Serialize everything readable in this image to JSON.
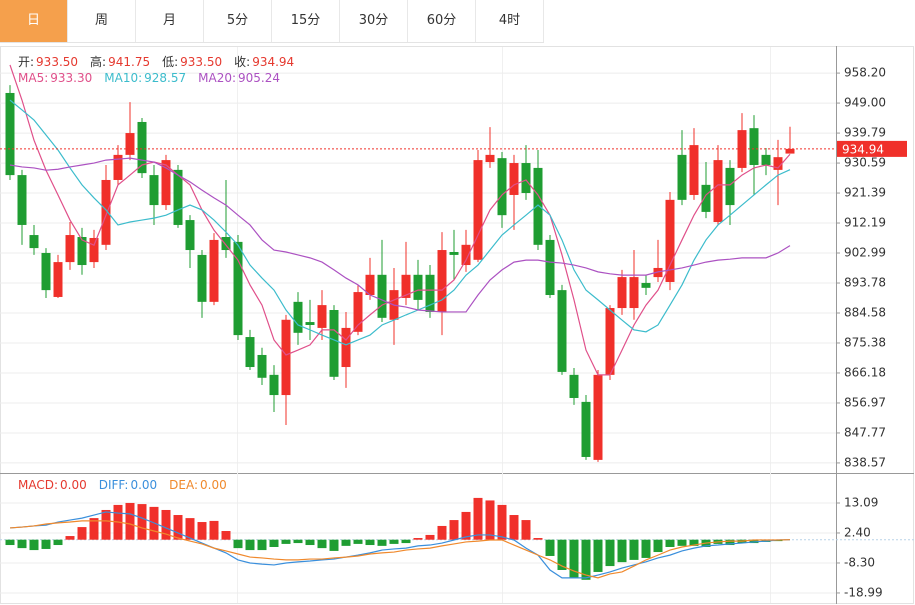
{
  "tabs": [
    "日",
    "周",
    "月",
    "5分",
    "15分",
    "30分",
    "60分",
    "4时"
  ],
  "active_tab": 0,
  "header": {
    "items": [
      {
        "label": "开:",
        "value": "933.50"
      },
      {
        "label": "高:",
        "value": "941.75"
      },
      {
        "label": "低:",
        "value": "933.50"
      },
      {
        "label": "收:",
        "value": "934.94"
      }
    ]
  },
  "chart_data": [
    {
      "type": "candlestick",
      "up_color": "#f0302a",
      "down_color": "#1f9d32",
      "ylim": [
        836.4,
        965.9
      ],
      "yticks": [
        {
          "value": 958.2,
          "label": "958.20"
        },
        {
          "value": 949.0,
          "label": "949.00"
        },
        {
          "value": 939.79,
          "label": "939.79"
        },
        {
          "value": 930.59,
          "label": "930.59"
        },
        {
          "value": 921.39,
          "label": "921.39"
        },
        {
          "value": 912.19,
          "label": "912.19"
        },
        {
          "value": 902.99,
          "label": "902.99"
        },
        {
          "value": 893.78,
          "label": "893.78"
        },
        {
          "value": 884.58,
          "label": "884.58"
        },
        {
          "value": 875.38,
          "label": "875.38"
        },
        {
          "value": 866.18,
          "label": "866.18"
        },
        {
          "value": 856.97,
          "label": "856.97"
        },
        {
          "value": 847.77,
          "label": "847.77"
        },
        {
          "value": 838.57,
          "label": "838.57"
        }
      ],
      "grid": true,
      "last_price": {
        "value": 934.94,
        "label": "934.94"
      },
      "open": [
        952.1,
        926.9,
        908.5,
        903.0,
        889.5,
        900.2,
        907.9,
        900.2,
        905.5,
        925.4,
        933.1,
        943.2,
        926.9,
        917.7,
        928.5,
        913.1,
        902.4,
        888.0,
        907.9,
        906.4,
        877.2,
        871.7,
        865.6,
        859.4,
        888.0,
        881.8,
        880.0,
        885.5,
        868.0,
        878.8,
        890.1,
        896.3,
        882.5,
        889.2,
        896.3,
        896.3,
        884.9,
        903.3,
        899.3,
        900.9,
        930.9,
        932.1,
        920.8,
        930.6,
        929.1,
        907.0,
        891.6,
        865.6,
        857.3,
        839.5,
        865.6,
        886.1,
        886.1,
        893.8,
        895.6,
        894.1,
        933.1,
        920.8,
        923.9,
        912.5,
        929.1,
        929.1,
        941.3,
        933.1,
        928.5,
        933.5
      ],
      "high": [
        954.5,
        928.5,
        911.6,
        904.5,
        902.4,
        912.5,
        910.7,
        910.1,
        930.0,
        936.1,
        949.3,
        944.4,
        930.0,
        933.1,
        930.0,
        914.6,
        903.9,
        909.1,
        925.4,
        908.5,
        879.4,
        873.9,
        868.6,
        884.0,
        891.0,
        888.6,
        891.6,
        887.0,
        884.9,
        893.2,
        901.5,
        907.0,
        898.4,
        906.4,
        900.9,
        899.3,
        909.4,
        910.1,
        910.1,
        934.6,
        941.6,
        934.0,
        933.1,
        936.1,
        934.6,
        908.5,
        893.2,
        867.7,
        859.4,
        867.1,
        887.0,
        897.8,
        903.9,
        896.3,
        907.0,
        921.7,
        940.7,
        941.3,
        930.9,
        936.1,
        931.5,
        945.9,
        945.3,
        935.2,
        937.7,
        941.75
      ],
      "low": [
        925.4,
        905.5,
        902.4,
        889.2,
        889.2,
        897.8,
        896.3,
        898.4,
        903.9,
        923.9,
        931.5,
        926.0,
        911.6,
        916.2,
        910.7,
        898.4,
        883.1,
        887.0,
        901.5,
        876.3,
        867.1,
        862.5,
        854.2,
        850.2,
        874.8,
        876.3,
        876.3,
        864.0,
        861.6,
        877.8,
        888.6,
        881.8,
        874.8,
        887.0,
        885.5,
        883.1,
        877.8,
        894.7,
        897.2,
        900.2,
        929.1,
        910.7,
        910.1,
        919.3,
        903.9,
        889.2,
        865.6,
        856.4,
        839.5,
        838.9,
        864.0,
        884.0,
        882.5,
        890.1,
        894.1,
        891.6,
        917.7,
        919.3,
        913.7,
        911.6,
        911.6,
        927.8,
        920.8,
        926.9,
        917.7,
        933.5
      ],
      "close": [
        926.9,
        911.6,
        904.5,
        891.6,
        900.2,
        908.5,
        899.3,
        907.6,
        925.4,
        933.1,
        939.8,
        927.5,
        917.7,
        931.5,
        911.6,
        903.9,
        888.0,
        907.0,
        903.9,
        877.8,
        868.0,
        864.7,
        859.4,
        882.5,
        878.5,
        880.9,
        887.0,
        865.0,
        880.0,
        891.0,
        896.3,
        883.1,
        891.6,
        896.3,
        888.6,
        884.9,
        903.9,
        902.4,
        905.5,
        931.5,
        933.1,
        914.6,
        930.6,
        921.4,
        905.5,
        890.1,
        866.5,
        858.5,
        840.4,
        865.6,
        886.1,
        895.6,
        895.6,
        892.3,
        898.4,
        919.3,
        919.3,
        936.1,
        915.6,
        931.5,
        917.7,
        940.7,
        930.0,
        930.0,
        932.4,
        934.94
      ],
      "series": [
        {
          "name": "MA5:",
          "value_label": "933.30",
          "color": "#e0508a",
          "values": [
            960.7,
            949.9,
            937.6,
            928.4,
            920.8,
            913.1,
            907.0,
            905.4,
            914.6,
            923.9,
            926.9,
            930.0,
            930.9,
            930.0,
            926.9,
            923.9,
            916.2,
            910.0,
            905.4,
            900.8,
            893.2,
            887.0,
            876.3,
            871.7,
            873.2,
            874.8,
            879.4,
            879.4,
            876.3,
            880.9,
            884.0,
            887.0,
            888.6,
            890.1,
            891.6,
            891.6,
            891.6,
            894.7,
            900.8,
            908.5,
            916.2,
            920.8,
            923.9,
            925.4,
            920.8,
            914.6,
            902.4,
            888.6,
            873.2,
            865.6,
            865.6,
            873.2,
            880.9,
            887.0,
            891.6,
            899.3,
            907.0,
            914.6,
            920.8,
            923.9,
            923.9,
            926.9,
            929.1,
            930.0,
            929.1,
            933.3
          ]
        },
        {
          "name": "MA10:",
          "value_label": "928.57",
          "color": "#3cbccc",
          "values": [
            949.9,
            946.9,
            943.8,
            939.2,
            934.6,
            929.1,
            923.9,
            919.9,
            916.2,
            911.6,
            912.5,
            913.1,
            913.7,
            914.6,
            916.2,
            917.7,
            916.2,
            913.1,
            909.4,
            905.4,
            899.3,
            895.3,
            891.6,
            885.5,
            880.9,
            879.4,
            877.8,
            876.3,
            874.8,
            876.3,
            877.8,
            880.9,
            882.4,
            884.0,
            885.5,
            887.0,
            888.6,
            891.6,
            896.2,
            899.3,
            903.9,
            908.5,
            911.6,
            914.6,
            917.7,
            914.6,
            907.0,
            897.8,
            891.6,
            888.6,
            885.5,
            882.4,
            879.4,
            878.8,
            880.9,
            887.0,
            893.2,
            900.8,
            907.0,
            911.6,
            914.6,
            917.7,
            920.8,
            923.9,
            926.9,
            928.57
          ]
        },
        {
          "name": "MA20:",
          "value_label": "905.24",
          "color": "#ac52c2",
          "values": [
            930.0,
            929.4,
            929.1,
            928.4,
            928.7,
            929.4,
            930.0,
            930.6,
            931.5,
            931.8,
            932.1,
            931.5,
            930.9,
            929.1,
            926.9,
            924.8,
            922.3,
            919.9,
            917.7,
            914.6,
            911.6,
            907.0,
            903.9,
            903.3,
            902.4,
            901.5,
            900.2,
            897.8,
            895.3,
            893.2,
            890.1,
            888.6,
            887.0,
            886.4,
            885.5,
            885.2,
            884.9,
            884.9,
            884.9,
            890.1,
            894.7,
            897.8,
            900.2,
            900.8,
            900.8,
            900.2,
            899.9,
            899.3,
            898.4,
            897.2,
            896.6,
            896.2,
            896.2,
            896.2,
            897.2,
            897.8,
            898.4,
            899.3,
            900.2,
            900.8,
            901.1,
            901.5,
            901.5,
            901.5,
            903.0,
            905.24
          ]
        }
      ]
    },
    {
      "type": "macd",
      "up_color": "#f0302a",
      "down_color": "#1f9d32",
      "ylim": [
        -21.5,
        22.0
      ],
      "yticks": [
        {
          "value": 13.09,
          "label": "13.09"
        },
        {
          "value": 2.4,
          "label": "2.40"
        },
        {
          "value": -8.3,
          "label": "-8.30"
        },
        {
          "value": -18.99,
          "label": "-18.99"
        }
      ],
      "series": [
        {
          "name": "MACD:",
          "value_label": "0.00",
          "color": "#e5392f",
          "kind": "bar",
          "values": [
            -1.9,
            -3.0,
            -3.7,
            -3.3,
            -1.9,
            1.3,
            4.5,
            7.7,
            10.6,
            12.4,
            13.1,
            12.7,
            11.7,
            10.6,
            8.8,
            7.7,
            6.3,
            6.7,
            3.1,
            -3.0,
            -3.7,
            -3.7,
            -2.6,
            -1.5,
            -1.2,
            -1.9,
            -3.0,
            -4.0,
            -2.2,
            -1.5,
            -1.9,
            -2.2,
            -1.5,
            -1.2,
            0.6,
            1.7,
            4.9,
            7.0,
            9.9,
            14.9,
            14.0,
            12.4,
            8.8,
            7.0,
            0.6,
            -5.8,
            -10.8,
            -13.6,
            -14.3,
            -11.5,
            -9.4,
            -8.0,
            -7.2,
            -6.5,
            -4.4,
            -2.6,
            -2.2,
            -2.2,
            -2.6,
            -1.5,
            -1.9,
            -1.2,
            -1.2,
            -0.8,
            -0.5,
            0
          ]
        },
        {
          "name": "DIFF:",
          "value_label": "0.00",
          "color": "#3a8fdc",
          "kind": "line",
          "values": [
            4.2,
            4.5,
            4.9,
            5.2,
            6.3,
            7.0,
            7.7,
            8.8,
            9.9,
            9.5,
            9.2,
            7.7,
            6.0,
            4.2,
            2.4,
            0.6,
            -1.2,
            -3.0,
            -4.7,
            -7.2,
            -8.3,
            -8.7,
            -9.0,
            -8.3,
            -7.9,
            -7.6,
            -7.2,
            -6.9,
            -6.2,
            -5.5,
            -4.7,
            -3.7,
            -3.3,
            -3.0,
            -2.2,
            -1.9,
            -1.2,
            -0.1,
            1.0,
            1.7,
            1.7,
            1.0,
            -0.1,
            -3.0,
            -5.5,
            -10.8,
            -13.6,
            -13.6,
            -13.6,
            -12.6,
            -11.5,
            -10.1,
            -9.0,
            -7.9,
            -6.5,
            -5.5,
            -4.0,
            -3.0,
            -2.2,
            -1.9,
            -1.5,
            -1.2,
            -0.8,
            -0.5,
            -0.1,
            0
          ]
        },
        {
          "name": "DEA:",
          "value_label": "0.00",
          "color": "#f0892c",
          "kind": "line",
          "values": [
            4.2,
            4.5,
            4.9,
            5.6,
            6.0,
            6.3,
            6.7,
            6.7,
            6.7,
            6.3,
            5.6,
            4.2,
            3.1,
            2.0,
            0.6,
            -0.5,
            -1.5,
            -3.0,
            -4.0,
            -5.1,
            -6.2,
            -6.5,
            -6.9,
            -7.2,
            -7.2,
            -6.9,
            -6.9,
            -6.5,
            -6.2,
            -5.8,
            -5.1,
            -4.7,
            -4.4,
            -3.7,
            -3.3,
            -3.0,
            -2.2,
            -1.5,
            -0.8,
            -0.5,
            -0.1,
            -0.1,
            -1.9,
            -3.7,
            -5.5,
            -7.2,
            -9.4,
            -11.2,
            -12.6,
            -13.6,
            -12.2,
            -11.5,
            -9.4,
            -7.2,
            -5.5,
            -3.7,
            -2.6,
            -1.9,
            -1.2,
            -0.8,
            -0.5,
            -0.5,
            -0.1,
            -0.1,
            -0.1,
            0
          ]
        }
      ]
    }
  ]
}
